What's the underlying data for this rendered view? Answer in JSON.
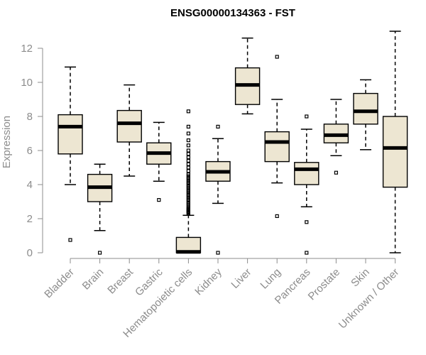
{
  "chart_data": {
    "type": "boxplot",
    "title": "ENSG00000134363 - FST",
    "ylabel": "Expression",
    "xlabel": "",
    "ylim": [
      0,
      12.5
    ],
    "yticks": [
      0,
      2,
      4,
      6,
      8,
      10,
      12
    ],
    "grid": false,
    "colors": {
      "box_fill": "#ede6d2",
      "box_stroke": "#000000",
      "axis": "#8c8c8c"
    },
    "categories": [
      "Bladder",
      "Brain",
      "Breast",
      "Gastric",
      "Hematopoietic cells",
      "Kidney",
      "Liver",
      "Lung",
      "Pancreas",
      "Prostate",
      "Skin",
      "Unknown / Other"
    ],
    "boxes": [
      {
        "q1": 5.8,
        "median": 7.4,
        "q3": 8.1,
        "whisker_low": 4.0,
        "whisker_high": 10.9,
        "outliers": [
          0.75
        ]
      },
      {
        "q1": 3.0,
        "median": 3.85,
        "q3": 4.6,
        "whisker_low": 1.3,
        "whisker_high": 5.2,
        "outliers": [
          0.0
        ]
      },
      {
        "q1": 6.5,
        "median": 7.6,
        "q3": 8.35,
        "whisker_low": 4.5,
        "whisker_high": 9.85,
        "outliers": []
      },
      {
        "q1": 5.2,
        "median": 5.85,
        "q3": 6.45,
        "whisker_low": 4.2,
        "whisker_high": 7.65,
        "outliers": [
          3.1
        ]
      },
      {
        "q1": 0.0,
        "median": 0.05,
        "q3": 0.9,
        "whisker_low": 0.0,
        "whisker_high": 2.2,
        "outliers": [
          2.3,
          2.35,
          2.4,
          2.45,
          2.5,
          2.55,
          2.6,
          2.7,
          2.8,
          2.9,
          3.0,
          3.1,
          3.2,
          3.3,
          3.4,
          3.5,
          3.6,
          3.7,
          3.8,
          3.9,
          4.0,
          4.1,
          4.2,
          4.3,
          4.4,
          4.5,
          4.6,
          4.8,
          5.0,
          5.2,
          5.4,
          5.6,
          5.8,
          6.0,
          6.3,
          6.6,
          7.0,
          7.4,
          8.3
        ]
      },
      {
        "q1": 4.2,
        "median": 4.75,
        "q3": 5.35,
        "whisker_low": 2.9,
        "whisker_high": 6.7,
        "outliers": [
          0.0,
          7.4
        ]
      },
      {
        "q1": 8.7,
        "median": 9.85,
        "q3": 10.85,
        "whisker_low": 8.15,
        "whisker_high": 12.6,
        "outliers": []
      },
      {
        "q1": 5.35,
        "median": 6.5,
        "q3": 7.1,
        "whisker_low": 4.1,
        "whisker_high": 9.0,
        "outliers": [
          2.15,
          11.5
        ]
      },
      {
        "q1": 4.0,
        "median": 4.9,
        "q3": 5.3,
        "whisker_low": 2.7,
        "whisker_high": 7.25,
        "outliers": [
          0.0,
          1.8,
          8.0
        ]
      },
      {
        "q1": 6.45,
        "median": 6.9,
        "q3": 7.55,
        "whisker_low": 5.7,
        "whisker_high": 9.0,
        "outliers": [
          4.7
        ]
      },
      {
        "q1": 7.55,
        "median": 8.3,
        "q3": 9.35,
        "whisker_low": 6.05,
        "whisker_high": 10.15,
        "outliers": []
      },
      {
        "q1": 3.85,
        "median": 6.15,
        "q3": 8.0,
        "whisker_low": 0.0,
        "whisker_high": 13.0,
        "outliers": []
      }
    ]
  }
}
